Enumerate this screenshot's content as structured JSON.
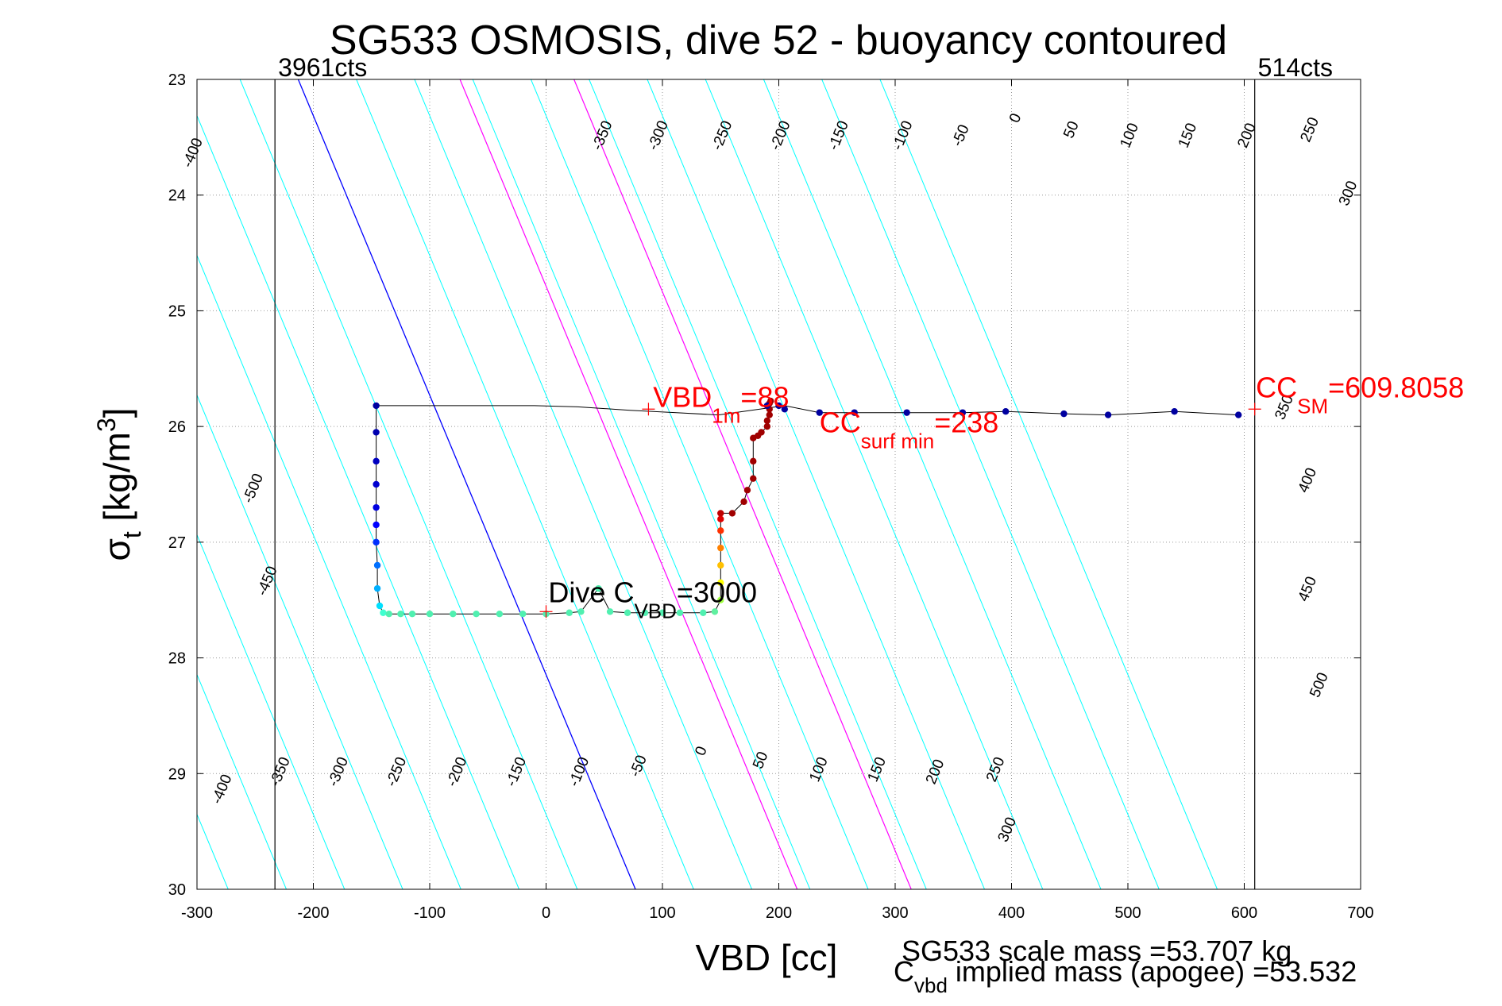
{
  "chart_data": {
    "type": "scatter",
    "title": "SG533 OSMOSIS, dive 52 - buoyancy contoured",
    "xlabel": "VBD [cc]",
    "ylabel": {
      "main": "σ",
      "sub": "t",
      "unit_pre": " [kg/m",
      "unit_sup": "3",
      "unit_post": "]"
    },
    "xlim": [
      -300,
      700
    ],
    "ylim": [
      23,
      30
    ],
    "y_reversed": true,
    "grid": true,
    "x_ticks": [
      -300,
      -200,
      -100,
      0,
      100,
      200,
      300,
      400,
      500,
      600,
      700
    ],
    "x_tick_labels": [
      "-300",
      "-200",
      "-100",
      "0",
      "100",
      "200",
      "300",
      "400",
      "500",
      "600",
      "700"
    ],
    "y_ticks": [
      23,
      24,
      25,
      26,
      27,
      28,
      29,
      30
    ],
    "y_tick_labels": [
      "23",
      "24",
      "25",
      "26",
      "27",
      "28",
      "29",
      "30"
    ],
    "colors": {
      "contour": "#00ffff",
      "zero_contour": "#0000ff",
      "mass_contour": "#ff00ff",
      "limit_line": "#000000",
      "annotation_red": "#ff0000",
      "track_line": "#000000"
    },
    "buoyancy_contours": {
      "levels": [
        -500,
        -450,
        -400,
        -350,
        -300,
        -250,
        -200,
        -150,
        -100,
        -50,
        0,
        50,
        100,
        150,
        200,
        250,
        300,
        350,
        400,
        450,
        500
      ],
      "vbd_at_sigma23": [
        -713,
        -663,
        -613,
        -563,
        -513,
        -463,
        -413,
        -363,
        -313,
        -263,
        -213,
        -163,
        -113,
        -63,
        -13,
        37,
        87,
        137,
        187,
        237,
        287
      ],
      "vbd_per_sigma_unit": 41.4,
      "zero_level": 0,
      "extra_lines": [
        {
          "vbd_at_sigma23": -74,
          "color": "magenta"
        },
        {
          "vbd_at_sigma23": 24,
          "color": "magenta"
        }
      ],
      "labels_top": [
        {
          "text": "-400",
          "x": -300,
          "y": 23.65
        },
        {
          "text": "-350",
          "x": 52,
          "y": 23.5
        },
        {
          "text": "-300",
          "x": 100,
          "y": 23.5
        },
        {
          "text": "-250",
          "x": 155,
          "y": 23.5
        },
        {
          "text": "-200",
          "x": 205,
          "y": 23.5
        },
        {
          "text": "-150",
          "x": 255,
          "y": 23.5
        },
        {
          "text": "-100",
          "x": 310,
          "y": 23.5
        },
        {
          "text": "-50",
          "x": 360,
          "y": 23.5
        },
        {
          "text": "0",
          "x": 407,
          "y": 23.35
        },
        {
          "text": "50",
          "x": 455,
          "y": 23.45
        },
        {
          "text": "100",
          "x": 505,
          "y": 23.5
        },
        {
          "text": "150",
          "x": 555,
          "y": 23.5
        },
        {
          "text": "200",
          "x": 606,
          "y": 23.5
        },
        {
          "text": "250",
          "x": 660,
          "y": 23.45
        },
        {
          "text": "300",
          "x": 693,
          "y": 24.0
        },
        {
          "text": "350",
          "x": 638,
          "y": 25.85
        },
        {
          "text": "400",
          "x": 658,
          "y": 26.48
        },
        {
          "text": "450",
          "x": 658,
          "y": 27.42
        },
        {
          "text": "500",
          "x": 668,
          "y": 28.25
        }
      ],
      "labels_left": [
        {
          "text": "-500",
          "x": -248,
          "y": 26.55
        },
        {
          "text": "-450",
          "x": -236,
          "y": 27.35
        },
        {
          "text": "-400",
          "x": -275,
          "y": 29.15
        },
        {
          "text": "-350",
          "x": -225,
          "y": 29.0
        },
        {
          "text": "-300",
          "x": -175,
          "y": 29.0
        },
        {
          "text": "-250",
          "x": -125,
          "y": 29.0
        },
        {
          "text": "-200",
          "x": -73,
          "y": 29.0
        },
        {
          "text": "-150",
          "x": -22,
          "y": 29.0
        },
        {
          "text": "-100",
          "x": 32,
          "y": 29.0
        },
        {
          "text": "-50",
          "x": 83,
          "y": 28.95
        },
        {
          "text": "0",
          "x": 137,
          "y": 28.82
        },
        {
          "text": "50",
          "x": 188,
          "y": 28.9
        },
        {
          "text": "100",
          "x": 238,
          "y": 28.98
        },
        {
          "text": "150",
          "x": 288,
          "y": 28.98
        },
        {
          "text": "200",
          "x": 338,
          "y": 29.0
        },
        {
          "text": "250",
          "x": 390,
          "y": 28.98
        },
        {
          "text": "300",
          "x": 400,
          "y": 29.5
        }
      ]
    },
    "vertical_lines": [
      {
        "x": -233,
        "label": "3961cts"
      },
      {
        "x": 609,
        "label": "514cts"
      }
    ],
    "track": {
      "x": [
        -146,
        -146,
        -146,
        -146,
        -146,
        -146,
        -146,
        -145,
        -145,
        -143,
        -140,
        -135,
        -125,
        -115,
        -100,
        -80,
        -60,
        -40,
        -20,
        0,
        20,
        30,
        45,
        55,
        70,
        85,
        100,
        115,
        135,
        145,
        150,
        150,
        150,
        150,
        150,
        150,
        150,
        160,
        170,
        173,
        178,
        178,
        178,
        182,
        185,
        190,
        190,
        192,
        192,
        192,
        193,
        190,
        200,
        205,
        235,
        265,
        310,
        358,
        395,
        445,
        483,
        540,
        595
      ],
      "y": [
        25.82,
        26.05,
        26.3,
        26.5,
        26.7,
        26.85,
        27.0,
        27.2,
        27.4,
        27.55,
        27.61,
        27.62,
        27.62,
        27.62,
        27.62,
        27.62,
        27.62,
        27.62,
        27.62,
        27.62,
        27.61,
        27.6,
        27.4,
        27.6,
        27.61,
        27.61,
        27.61,
        27.61,
        27.61,
        27.6,
        27.5,
        27.35,
        27.2,
        27.05,
        26.9,
        26.8,
        26.75,
        26.75,
        26.65,
        26.55,
        26.45,
        26.3,
        26.1,
        26.08,
        26.05,
        26.0,
        25.95,
        25.9,
        25.85,
        25.8,
        25.78,
        25.82,
        25.82,
        25.85,
        25.88,
        25.88,
        25.88,
        25.88,
        25.87,
        25.89,
        25.9,
        25.87,
        25.9
      ],
      "colors": [
        "#0000a0",
        "#0000b0",
        "#0000c0",
        "#0000d0",
        "#0000e0",
        "#0000ff",
        "#0030ff",
        "#0070ff",
        "#00b0ff",
        "#00e0ff",
        "#40ffd0",
        "#50f0b0",
        "#50f0b0",
        "#50f0b0",
        "#50f0b0",
        "#50f0b0",
        "#50f0b0",
        "#50f0b0",
        "#50f0b0",
        "#50f0b0",
        "#50f0b0",
        "#50f0b0",
        "#50f0b0",
        "#50f0b0",
        "#50f0b0",
        "#50f0b0",
        "#50f0b0",
        "#50f0b0",
        "#50f0b0",
        "#60f0a0",
        "#a0ff40",
        "#ffff00",
        "#ffc000",
        "#ff8000",
        "#ff3000",
        "#e00000",
        "#c00000",
        "#a00000",
        "#a00000",
        "#a00000",
        "#a00000",
        "#a00000",
        "#a00000",
        "#a00000",
        "#a00000",
        "#a00000",
        "#a00000",
        "#a00000",
        "#a00000",
        "#a00000",
        "#a00000",
        "#0000a0",
        "#0000a0",
        "#0000a0",
        "#0000a0",
        "#0000a0",
        "#0000a0",
        "#0000a0",
        "#0000a0",
        "#0000a0",
        "#0000a0",
        "#0000a0",
        "#0000a0"
      ],
      "upper_track_x": [
        -146,
        -105,
        -62,
        -10,
        27,
        72,
        112,
        148,
        205,
        235,
        265,
        310,
        358,
        395,
        445,
        483,
        540,
        595
      ],
      "upper_track_y": [
        25.82,
        25.82,
        25.82,
        25.82,
        25.83,
        25.86,
        25.88,
        25.9,
        25.82,
        25.88,
        25.88,
        25.88,
        25.88,
        25.87,
        25.89,
        25.9,
        25.87,
        25.9
      ]
    },
    "markers": [
      {
        "x": 88,
        "y": 25.85,
        "color": "red"
      },
      {
        "x": 0,
        "y": 27.6,
        "color": "red"
      },
      {
        "x": 609,
        "y": 25.85,
        "color": "red"
      }
    ],
    "annotations": [
      {
        "id": "vbd1m",
        "main": "VBD",
        "sub": "1m",
        "tail": "=88",
        "x": 92,
        "y": 25.83,
        "color": "red"
      },
      {
        "id": "ccsurfmin",
        "main": "CC",
        "sub": "surf min",
        "tail": "=238",
        "x": 235,
        "y": 26.05,
        "color": "red"
      },
      {
        "id": "ccsm",
        "main": "CC",
        "sub": "SM",
        "tail": "=609.8058",
        "x": 610,
        "y": 25.75,
        "color": "red"
      },
      {
        "id": "divecvbd",
        "main": "Dive C",
        "sub": "VBD",
        "tail": "=3000",
        "x": 2,
        "y": 27.52,
        "color": "black"
      }
    ],
    "footer": {
      "line1": "SG533 scale mass =53.707 kg",
      "line2_main": "C",
      "line2_sub": "vbd",
      "line2_tail": " implied mass (apogee) =53.532"
    }
  }
}
